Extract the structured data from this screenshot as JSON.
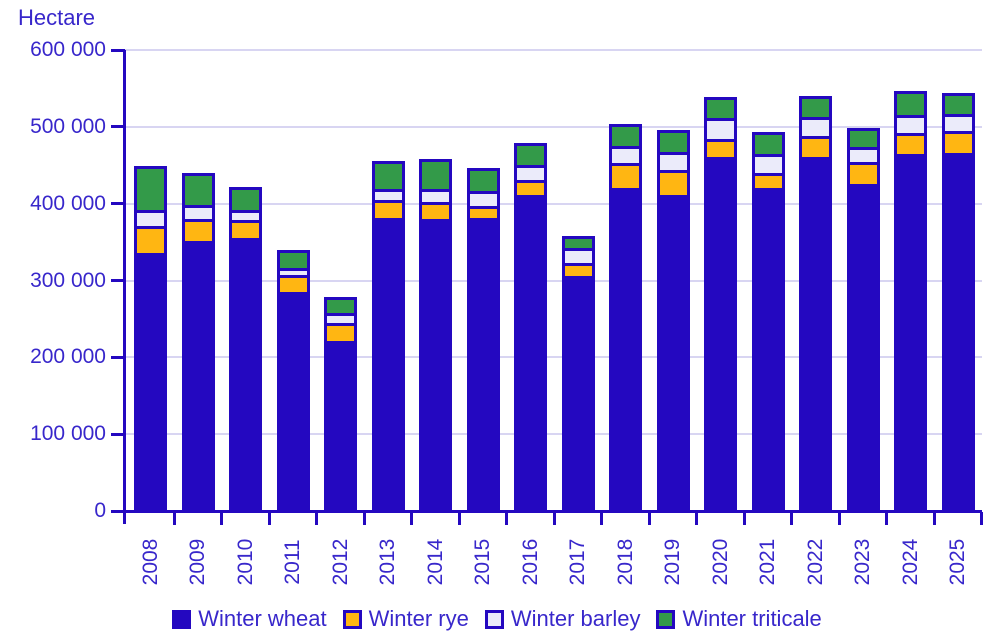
{
  "chart_data": {
    "type": "bar",
    "stacked": true,
    "title": "Hectare",
    "categories": [
      "2008",
      "2009",
      "2010",
      "2011",
      "2012",
      "2013",
      "2014",
      "2015",
      "2016",
      "2017",
      "2018",
      "2019",
      "2020",
      "2021",
      "2022",
      "2023",
      "2024",
      "2025"
    ],
    "series": [
      {
        "name": "Winter wheat",
        "color": "#2408c0",
        "values": [
          336000,
          353000,
          356000,
          286000,
          221000,
          382000,
          380000,
          382000,
          411000,
          306000,
          422000,
          412000,
          460000,
          422000,
          461000,
          426500,
          465000,
          465000
        ]
      },
      {
        "name": "Winter rye",
        "color": "#ffb612",
        "values": [
          35000,
          28000,
          23000,
          22000,
          23500,
          23500,
          21500,
          15000,
          20000,
          17000,
          32000,
          32500,
          24000,
          19000,
          27500,
          28000,
          27500,
          28500
        ]
      },
      {
        "name": "Winter barley",
        "color": "#ebebfa",
        "values": [
          21000,
          18000,
          13000,
          9000,
          13000,
          14500,
          17000,
          19500,
          20000,
          19000,
          21500,
          23000,
          27000,
          24500,
          24500,
          19500,
          23500,
          22500
        ]
      },
      {
        "name": "Winter triticale",
        "color": "#339a49",
        "values": [
          57000,
          41000,
          30000,
          23000,
          21000,
          36000,
          39000,
          29500,
          28500,
          16000,
          28000,
          28000,
          27500,
          28000,
          27000,
          24500,
          31000,
          27500
        ]
      }
    ],
    "totals": [
      449000,
      440000,
      422000,
      340000,
      278500,
      456000,
      457500,
      446000,
      479500,
      358000,
      503500,
      495500,
      538500,
      493500,
      540000,
      498500,
      547000,
      543500
    ],
    "ylim": [
      0,
      600000
    ],
    "y_tick_labels": [
      "600 000",
      "500 000",
      "400 000",
      "300 000",
      "200 000",
      "100 000",
      "0"
    ],
    "y_tick_values": [
      600000,
      500000,
      400000,
      300000,
      200000,
      100000,
      0
    ],
    "xlabel": "",
    "ylabel": "Hectare",
    "grid": "horizontal",
    "legend_position": "bottom",
    "colors": {
      "axis": "#2408c0",
      "bar_border": "#2408c0",
      "text": "#3827cb",
      "gridline": "#d8d5f2",
      "background": "#ffffff"
    }
  }
}
